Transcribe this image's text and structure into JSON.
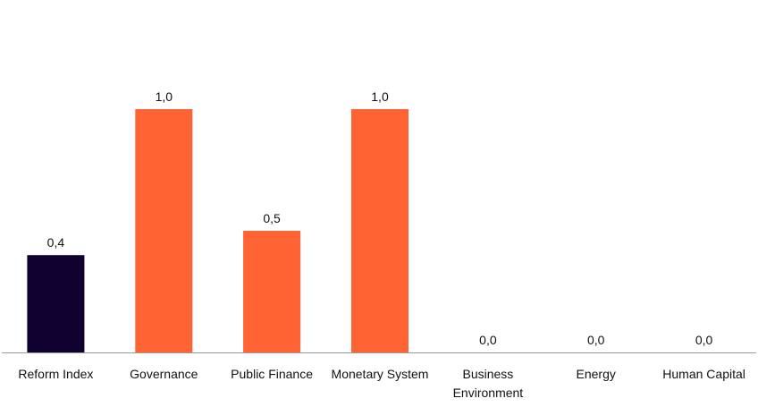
{
  "chart_data": {
    "type": "bar",
    "categories": [
      [
        "Reform Index"
      ],
      [
        "Governance"
      ],
      [
        "Public Finance"
      ],
      [
        "Monetary System"
      ],
      [
        "Business",
        "Environment"
      ],
      [
        "Energy"
      ],
      [
        "Human Capital"
      ]
    ],
    "values": [
      0.4,
      1.0,
      0.5,
      1.0,
      0.0,
      0.0,
      0.0
    ],
    "value_labels": [
      "0,4",
      "1,0",
      "0,5",
      "1,0",
      "0,0",
      "0,0",
      "0,0"
    ],
    "bar_colors": [
      "#10002f",
      "#ff6233",
      "#ff6233",
      "#ff6233",
      "#ff6233",
      "#ff6233",
      "#ff6233"
    ],
    "axis_color": "#9a9a9a",
    "ylim": [
      0,
      1.0
    ],
    "grid": false,
    "legend": "none",
    "title": "",
    "xlabel": "",
    "ylabel": ""
  }
}
